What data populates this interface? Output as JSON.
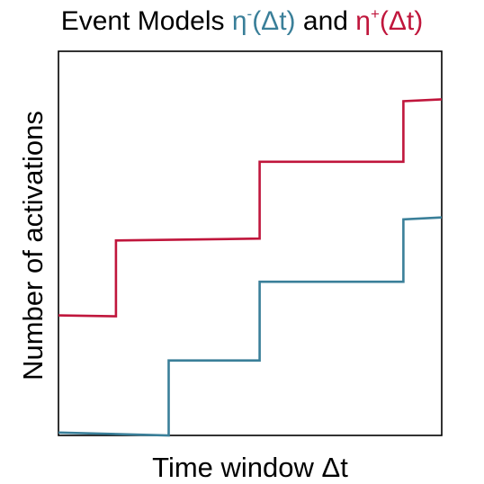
{
  "chart_data": {
    "type": "line",
    "step": true,
    "title": {
      "prefix": "Event Models ",
      "eta_minus": {
        "base": "η",
        "sup": "-",
        "arg": "(Δt)"
      },
      "conjunction": " and ",
      "eta_plus": {
        "base": "η",
        "sup": "+",
        "arg": "(Δt)"
      }
    },
    "xlabel": "Time window Δt",
    "ylabel": "Number of activations",
    "xlim": [
      0,
      4
    ],
    "ylim": [
      0,
      4
    ],
    "ticks": false,
    "grid": false,
    "series": [
      {
        "id": "eta_plus",
        "color": "#c0163c",
        "x": [
          0,
          0.6,
          0.6,
          2.1,
          2.1,
          3.6,
          3.6,
          4
        ],
        "y": [
          1.25,
          1.24,
          2.03,
          2.05,
          2.85,
          2.85,
          3.48,
          3.5
        ]
      },
      {
        "id": "eta_minus",
        "color": "#3a7f99",
        "x": [
          0,
          1.15,
          1.15,
          2.1,
          2.1,
          3.6,
          3.6,
          4
        ],
        "y": [
          0.03,
          0.0,
          0.78,
          0.78,
          1.6,
          1.6,
          2.25,
          2.27
        ]
      }
    ]
  }
}
